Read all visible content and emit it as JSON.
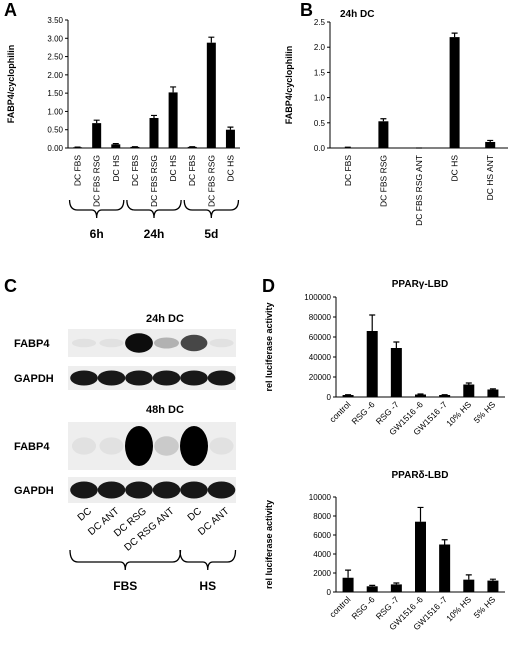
{
  "panel_labels": [
    "A",
    "B",
    "C",
    "D"
  ],
  "chart_data": [
    {
      "type": "bar",
      "y_label": "FABP4/cyclophilin",
      "categories": [
        "DC FBS",
        "DC FBS RSG",
        "DC HS",
        "DC FBS",
        "DC FBS RSG",
        "DC HS",
        "DC FBS",
        "DC FBS RSG",
        "DC HS"
      ],
      "values": [
        0.02,
        0.68,
        0.1,
        0.03,
        0.82,
        1.52,
        0.03,
        2.88,
        0.5
      ],
      "errors": [
        0.005,
        0.08,
        0.02,
        0.005,
        0.07,
        0.15,
        0.005,
        0.15,
        0.07
      ],
      "groups": [
        "6h",
        "24h",
        "5d"
      ],
      "color": "#000000",
      "ylim": [
        0,
        3.5
      ],
      "yticks": [
        {
          "value": 0,
          "label": "0.00"
        },
        {
          "value": 0.5,
          "label": "0.50"
        },
        {
          "value": 1,
          "label": "1.00"
        },
        {
          "value": 1.5,
          "label": "1.50"
        },
        {
          "value": 2,
          "label": "2.00"
        },
        {
          "value": 2.5,
          "label": "2.50"
        },
        {
          "value": 3,
          "label": "3.00"
        },
        {
          "value": 3.5,
          "label": "3.50"
        }
      ]
    },
    {
      "type": "bar",
      "title": "24h DC",
      "y_label": "FABP4/cyclophilin",
      "categories": [
        "DC FBS",
        "DC FBS RSG",
        "DC FBS RSG ANT",
        "DC HS",
        "DC HS ANT"
      ],
      "values": [
        0.01,
        0.53,
        0,
        2.2,
        0.12
      ],
      "errors": [
        0.005,
        0.05,
        0,
        0.08,
        0.03
      ],
      "color": "#000000",
      "ylim": [
        0,
        2.5
      ],
      "yticks": [
        {
          "value": 0,
          "label": "0.0"
        },
        {
          "value": 0.5,
          "label": "0.5"
        },
        {
          "value": 1,
          "label": "1.0"
        },
        {
          "value": 1.5,
          "label": "1.5"
        },
        {
          "value": 2,
          "label": "2.0"
        },
        {
          "value": 2.5,
          "label": "2.5"
        }
      ]
    },
    {
      "type": "bar",
      "title": "PPARγ-LBD",
      "y_label": "rel luciferase activity",
      "categories": [
        "control",
        "RSG -6",
        "RSG -7",
        "GW1516 -6",
        "GW1516 -7",
        "10% HS",
        "5% HS"
      ],
      "values": [
        2000,
        66000,
        49000,
        2500,
        2000,
        12500,
        7500
      ],
      "errors": [
        300,
        16000,
        6000,
        500,
        300,
        1500,
        700
      ],
      "color": "#000000",
      "ylim": [
        0,
        100000
      ],
      "yticks": [
        0,
        20000,
        40000,
        60000,
        80000,
        100000
      ]
    },
    {
      "type": "bar",
      "title": "PPARδ-LBD",
      "y_label": "rel luciferase activity",
      "categories": [
        "control",
        "RSG -6",
        "RSG -7",
        "GW1516 -6",
        "GW1516 -7",
        "10% HS",
        "5% HS"
      ],
      "values": [
        1500,
        600,
        800,
        7400,
        5000,
        1300,
        1200
      ],
      "errors": [
        800,
        100,
        150,
        1500,
        500,
        500,
        150
      ],
      "color": "#000000",
      "ylim": [
        0,
        10000
      ],
      "yticks": [
        0,
        2000,
        4000,
        6000,
        8000,
        10000
      ]
    }
  ],
  "blot": {
    "panels": [
      {
        "title": "24h DC",
        "rows": [
          "FABP4",
          "GAPDH"
        ]
      },
      {
        "title": "48h DC",
        "rows": [
          "FABP4",
          "GAPDH"
        ]
      }
    ],
    "lanes": [
      "DC",
      "DC ANT",
      "DC RSG",
      "DC RSG ANT",
      "DC",
      "DC ANT"
    ],
    "groups": [
      "FBS",
      "HS"
    ]
  }
}
